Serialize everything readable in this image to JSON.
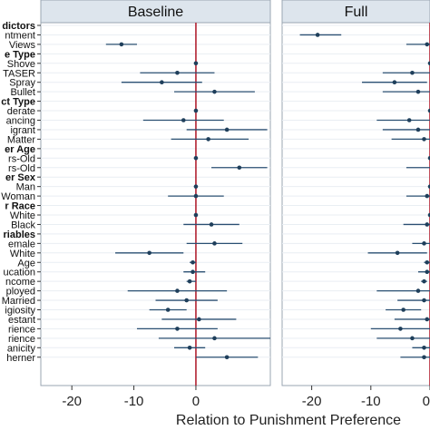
{
  "chart_data": {
    "type": "coefficient-plot",
    "xlabel": "Relation to Punishment Preference",
    "xlim": [
      -25,
      0
    ],
    "xticks": [
      -20,
      -10,
      0
    ],
    "colors": {
      "point": "#1f3f5b",
      "ci": "#2a4f72",
      "zero_line": "#b22232",
      "strip": "#dde5ed",
      "grid": "#e9eef3"
    },
    "panels": [
      {
        "name": "Baseline",
        "xlim": [
          -25,
          12
        ]
      },
      {
        "name": "Full",
        "xlim": [
          -25,
          0
        ]
      }
    ],
    "rows": [
      {
        "label": "dictors",
        "kind": "header"
      },
      {
        "label": "ntment",
        "kind": "item",
        "estimates": [
          null,
          [
            -19,
            -22,
            -15
          ]
        ]
      },
      {
        "label": "Views",
        "kind": "item",
        "estimates": [
          [
            -12,
            -14.5,
            -9.5
          ],
          [
            -0.5,
            -4,
            3
          ]
        ]
      },
      {
        "label": "e Type",
        "kind": "header"
      },
      {
        "label": "Shove",
        "kind": "item",
        "estimates": [
          [
            0,
            0,
            0
          ],
          [
            0,
            0,
            0
          ]
        ]
      },
      {
        "label": "TASER",
        "kind": "item",
        "estimates": [
          [
            -3,
            -9,
            3
          ],
          [
            -3,
            -8,
            2
          ]
        ]
      },
      {
        "label": "Spray",
        "kind": "item",
        "estimates": [
          [
            -5.5,
            -12,
            1
          ],
          [
            -6,
            -11.5,
            -0.5
          ]
        ]
      },
      {
        "label": "Bullet",
        "kind": "item",
        "estimates": [
          [
            3,
            -3.5,
            9.5
          ],
          [
            -2,
            -8,
            4
          ]
        ]
      },
      {
        "label": "ct Type",
        "kind": "header"
      },
      {
        "label": "derate",
        "kind": "item",
        "estimates": [
          [
            0,
            0,
            0
          ],
          [
            0,
            0,
            0
          ]
        ]
      },
      {
        "label": "ancing",
        "kind": "item",
        "estimates": [
          [
            -2,
            -8.5,
            4.5
          ],
          [
            -3.5,
            -9,
            2
          ]
        ]
      },
      {
        "label": "igrant",
        "kind": "item",
        "estimates": [
          [
            5,
            -1.5,
            11.5
          ],
          [
            -2,
            -8,
            4
          ]
        ]
      },
      {
        "label": "Matter",
        "kind": "item",
        "estimates": [
          [
            2,
            -4,
            8.5
          ],
          [
            -1,
            -6.5,
            4.5
          ]
        ]
      },
      {
        "label": "er Age",
        "kind": "header"
      },
      {
        "label": "rs-Old",
        "kind": "item",
        "estimates": [
          [
            0,
            0,
            0
          ],
          [
            0,
            0,
            0
          ]
        ]
      },
      {
        "label": "rs-Old",
        "kind": "item",
        "estimates": [
          [
            7,
            2.5,
            11.5
          ],
          [
            0.5,
            -4,
            5
          ]
        ]
      },
      {
        "label": "er Sex",
        "kind": "header"
      },
      {
        "label": "Man",
        "kind": "item",
        "estimates": [
          [
            0,
            0,
            0
          ],
          [
            0,
            0,
            0
          ]
        ]
      },
      {
        "label": "Woman",
        "kind": "item",
        "estimates": [
          [
            0,
            -4.5,
            4.5
          ],
          [
            -0.5,
            -4,
            3
          ]
        ]
      },
      {
        "label": "r Race",
        "kind": "header"
      },
      {
        "label": "White",
        "kind": "item",
        "estimates": [
          [
            0,
            0,
            0
          ],
          [
            0,
            0,
            0
          ]
        ]
      },
      {
        "label": "Black",
        "kind": "item",
        "estimates": [
          [
            2.5,
            -2,
            7
          ],
          [
            -0.5,
            -4.5,
            3.5
          ]
        ]
      },
      {
        "label": "riables",
        "kind": "header"
      },
      {
        "label": "emale",
        "kind": "item",
        "estimates": [
          [
            3,
            -1.5,
            7.5
          ],
          [
            -1,
            -3,
            1
          ]
        ]
      },
      {
        "label": "White",
        "kind": "item",
        "estimates": [
          [
            -7.5,
            -13,
            -2
          ],
          [
            -5.5,
            -10.5,
            -0.5
          ]
        ]
      },
      {
        "label": "Age",
        "kind": "item",
        "estimates": [
          [
            -0.5,
            -1,
            0
          ],
          [
            -0.5,
            -1,
            0
          ]
        ]
      },
      {
        "label": "ucation",
        "kind": "item",
        "estimates": [
          [
            -0.5,
            -2,
            1.5
          ],
          [
            -0.5,
            -2,
            1
          ]
        ]
      },
      {
        "label": "ncome",
        "kind": "item",
        "estimates": [
          [
            -1,
            -1.5,
            0
          ],
          [
            -1,
            -1.5,
            -0.5
          ]
        ]
      },
      {
        "label": "ployed",
        "kind": "item",
        "estimates": [
          [
            -3,
            -11,
            5
          ],
          [
            -2,
            -9,
            5
          ]
        ]
      },
      {
        "label": "Married",
        "kind": "item",
        "estimates": [
          [
            -1.5,
            -6.5,
            3.5
          ],
          [
            -1,
            -5.5,
            3.5
          ]
        ]
      },
      {
        "label": "igiosity",
        "kind": "item",
        "estimates": [
          [
            -4.5,
            -7.5,
            -1.5
          ],
          [
            -4.5,
            -7.5,
            -1.5
          ]
        ]
      },
      {
        "label": "estant",
        "kind": "item",
        "estimates": [
          [
            0.5,
            -5.5,
            6.5
          ],
          [
            -0.5,
            -6,
            5
          ]
        ]
      },
      {
        "label": "rience",
        "kind": "item",
        "estimates": [
          [
            -3,
            -9.5,
            3.5
          ],
          [
            -5,
            -10,
            0
          ]
        ]
      },
      {
        "label": "rience",
        "kind": "item",
        "estimates": [
          [
            3,
            -6,
            12
          ],
          [
            -3,
            -9,
            3
          ]
        ]
      },
      {
        "label": "anicity",
        "kind": "item",
        "estimates": [
          [
            -1,
            -3.5,
            1.5
          ],
          [
            -1,
            -3,
            1
          ]
        ]
      },
      {
        "label": "herner",
        "kind": "item",
        "estimates": [
          [
            5,
            0,
            10
          ],
          [
            -1,
            -5,
            3
          ]
        ]
      }
    ]
  }
}
